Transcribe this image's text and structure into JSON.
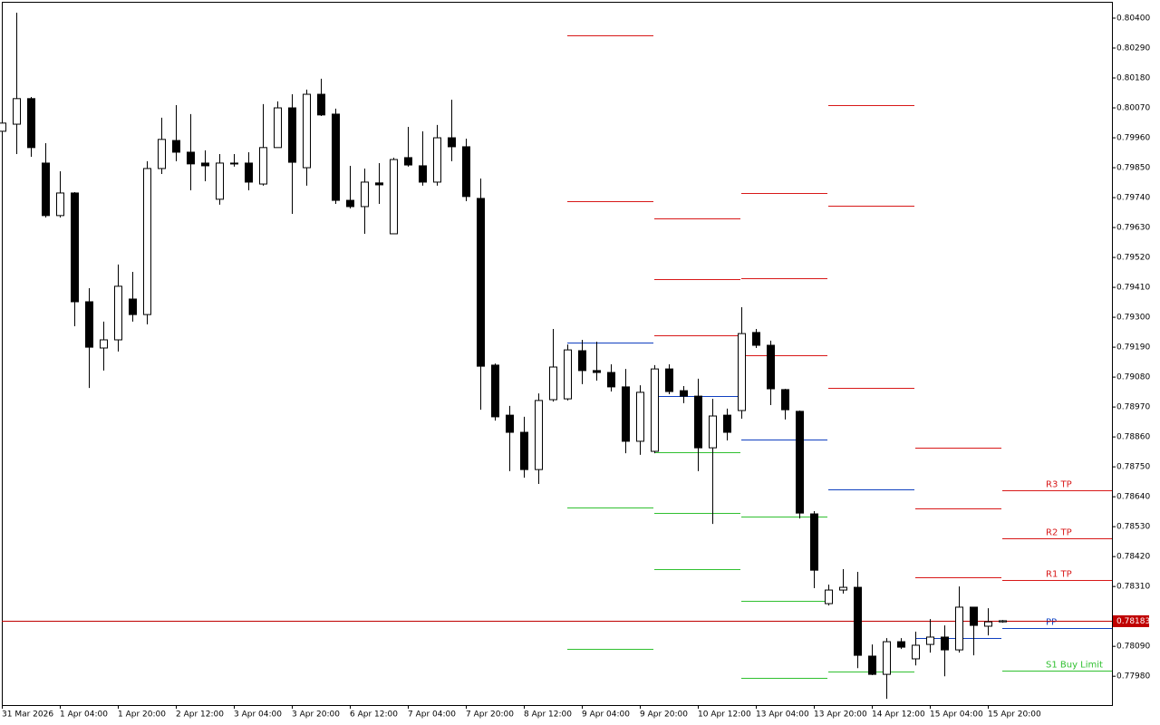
{
  "chart_data": {
    "type": "candlestick",
    "categories": [
      "31 Mar 2026",
      null,
      null,
      null,
      "1 Apr 04:00",
      null,
      null,
      null,
      "1 Apr 20:00",
      null,
      null,
      null,
      "2 Apr 12:00",
      null,
      null,
      null,
      "3 Apr 04:00",
      null,
      null,
      null,
      "3 Apr 20:00",
      null,
      null,
      null,
      "6 Apr 12:00",
      null,
      null,
      null,
      "7 Apr 04:00",
      null,
      null,
      null,
      "7 Apr 20:00",
      null,
      null,
      null,
      "8 Apr 12:00",
      null,
      null,
      null,
      "9 Apr 04:00",
      null,
      null,
      null,
      "9 Apr 20:00",
      null,
      null,
      null,
      "10 Apr 12:00",
      null,
      null,
      null,
      "13 Apr 04:00",
      null,
      null,
      null,
      "13 Apr 20:00",
      null,
      null,
      null,
      "14 Apr 12:00",
      null,
      null,
      null,
      "15 Apr 04:00",
      null,
      null,
      null,
      "15 Apr 20:00",
      null
    ],
    "open": [
      0.79984,
      0.8001,
      0.80104,
      0.79867,
      0.79674,
      0.79757,
      0.79357,
      0.79187,
      0.79217,
      0.79367,
      0.7931,
      0.79847,
      0.7995,
      0.79907,
      0.79867,
      0.79734,
      0.79867,
      0.79867,
      0.7979,
      0.79924,
      0.8007,
      0.7985,
      0.8012,
      0.80047,
      0.7973,
      0.79707,
      0.79794,
      0.79607,
      0.79887,
      0.79857,
      0.79797,
      0.7996,
      0.79927,
      0.79737,
      0.79124,
      0.7894,
      0.78877,
      0.7874,
      0.78997,
      0.79,
      0.79177,
      0.79104,
      0.79097,
      0.79044,
      0.78844,
      0.78807,
      0.7911,
      0.7903,
      0.7901,
      0.7882,
      0.7894,
      0.78957,
      0.79244,
      0.79197,
      0.79034,
      0.78954,
      0.78577,
      0.78247,
      0.78297,
      0.78307,
      0.78054,
      0.77987,
      0.78107,
      0.78044,
      0.78097,
      0.78124,
      0.78077,
      0.78234,
      0.78164,
      0.7818
    ],
    "high": [
      0.80014,
      0.8042,
      0.8011,
      0.7994,
      0.79837,
      0.7976,
      0.79407,
      0.79284,
      0.79494,
      0.79467,
      0.79874,
      0.80034,
      0.8008,
      0.80047,
      0.79914,
      0.799,
      0.799,
      0.79907,
      0.80084,
      0.80094,
      0.8012,
      0.80137,
      0.80177,
      0.80067,
      0.79857,
      0.79847,
      0.79867,
      0.79887,
      0.8,
      0.79984,
      0.80007,
      0.801,
      0.79957,
      0.7981,
      0.7913,
      0.78974,
      0.78934,
      0.7902,
      0.79257,
      0.792,
      0.79217,
      0.7921,
      0.79127,
      0.7911,
      0.7905,
      0.79124,
      0.79127,
      0.79047,
      0.79074,
      0.79,
      0.78964,
      0.79337,
      0.79257,
      0.79214,
      0.79037,
      0.78957,
      0.78587,
      0.78317,
      0.78374,
      0.78364,
      0.78097,
      0.7812,
      0.7812,
      0.78144,
      0.7819,
      0.78167,
      0.7831,
      0.78234,
      0.7823,
      0.78187
    ],
    "low": [
      0.79984,
      0.799,
      0.7989,
      0.79667,
      0.79667,
      0.79267,
      0.7904,
      0.79104,
      0.79174,
      0.79284,
      0.79274,
      0.79827,
      0.79874,
      0.79767,
      0.798,
      0.79714,
      0.79854,
      0.79767,
      0.79784,
      0.79924,
      0.7968,
      0.79784,
      0.8004,
      0.79717,
      0.797,
      0.79607,
      0.79717,
      0.79607,
      0.79854,
      0.79784,
      0.79784,
      0.79874,
      0.79727,
      0.7896,
      0.7892,
      0.78734,
      0.7871,
      0.78687,
      0.7899,
      0.78994,
      0.79054,
      0.79067,
      0.79027,
      0.788,
      0.78794,
      0.788,
      0.79017,
      0.78984,
      0.78734,
      0.7854,
      0.78847,
      0.78927,
      0.79187,
      0.78977,
      0.78924,
      0.7856,
      0.78304,
      0.7824,
      0.78284,
      0.7801,
      0.77984,
      0.77897,
      0.7808,
      0.7802,
      0.78067,
      0.7798,
      0.78067,
      0.78057,
      0.7813,
      0.78177
    ],
    "close": [
      0.80014,
      0.80104,
      0.79924,
      0.79674,
      0.79757,
      0.79357,
      0.7919,
      0.79217,
      0.79414,
      0.7931,
      0.79847,
      0.79954,
      0.79907,
      0.79864,
      0.79857,
      0.79867,
      0.79867,
      0.79797,
      0.79924,
      0.8007,
      0.7987,
      0.8012,
      0.80044,
      0.7973,
      0.79707,
      0.79797,
      0.79787,
      0.7988,
      0.7986,
      0.79797,
      0.7996,
      0.79927,
      0.79744,
      0.7912,
      0.78934,
      0.78877,
      0.7874,
      0.78994,
      0.79117,
      0.7918,
      0.79104,
      0.79097,
      0.79044,
      0.78844,
      0.79024,
      0.7911,
      0.79027,
      0.7901,
      0.7882,
      0.78937,
      0.78877,
      0.7924,
      0.79197,
      0.79037,
      0.7896,
      0.7858,
      0.7837,
      0.78297,
      0.78307,
      0.78057,
      0.77987,
      0.78107,
      0.78087,
      0.78094,
      0.78124,
      0.78077,
      0.78234,
      0.78167,
      0.7818,
      0.78184
    ],
    "ylim": [
      0.77874,
      0.8046
    ],
    "yticks": [
      {
        "value": 0.804,
        "label": "0.80400"
      },
      {
        "value": 0.8029,
        "label": "0.80290"
      },
      {
        "value": 0.8018,
        "label": "0.80180"
      },
      {
        "value": 0.8007,
        "label": "0.80070"
      },
      {
        "value": 0.7996,
        "label": "0.79960"
      },
      {
        "value": 0.7985,
        "label": "0.79850"
      },
      {
        "value": 0.7974,
        "label": "0.79740"
      },
      {
        "value": 0.7963,
        "label": "0.79630"
      },
      {
        "value": 0.7952,
        "label": "0.79520"
      },
      {
        "value": 0.7941,
        "label": "0.79410"
      },
      {
        "value": 0.793,
        "label": "0.79300"
      },
      {
        "value": 0.7919,
        "label": "0.79190"
      },
      {
        "value": 0.7908,
        "label": "0.79080"
      },
      {
        "value": 0.7897,
        "label": "0.78970"
      },
      {
        "value": 0.7886,
        "label": "0.78860"
      },
      {
        "value": 0.7875,
        "label": "0.78750"
      },
      {
        "value": 0.7864,
        "label": "0.78640"
      },
      {
        "value": 0.7853,
        "label": "0.78530"
      },
      {
        "value": 0.7842,
        "label": "0.78420"
      },
      {
        "value": 0.7831,
        "label": "0.78310"
      },
      {
        "value": 0.7809,
        "label": "0.78090"
      },
      {
        "value": 0.7798,
        "label": "0.77980"
      }
    ],
    "current_price": 0.78183,
    "current_color": "#c00000",
    "pivot_days": [
      {
        "levels": [
          {
            "value": 0.80337,
            "color": "#d81818"
          },
          {
            "value": 0.79727,
            "color": "#d81818"
          },
          {
            "value": 0.79207,
            "color": "#1040c0"
          },
          {
            "value": 0.786,
            "color": "#30c030"
          },
          {
            "value": 0.7808,
            "color": "#30c030"
          }
        ]
      },
      {
        "levels": [
          {
            "value": 0.79664,
            "color": "#d81818"
          },
          {
            "value": 0.7944,
            "color": "#d81818"
          },
          {
            "value": 0.79234,
            "color": "#d81818"
          },
          {
            "value": 0.7901,
            "color": "#1040c0"
          },
          {
            "value": 0.78804,
            "color": "#30c030"
          },
          {
            "value": 0.7858,
            "color": "#30c030"
          },
          {
            "value": 0.78374,
            "color": "#30c030"
          }
        ]
      },
      {
        "levels": [
          {
            "value": 0.79757,
            "color": "#d81818"
          },
          {
            "value": 0.79444,
            "color": "#d81818"
          },
          {
            "value": 0.7916,
            "color": "#d81818"
          },
          {
            "value": 0.7885,
            "color": "#1040c0"
          },
          {
            "value": 0.78567,
            "color": "#30c030"
          },
          {
            "value": 0.78257,
            "color": "#30c030"
          },
          {
            "value": 0.77974,
            "color": "#30c030"
          }
        ]
      },
      {
        "levels": [
          {
            "value": 0.8008,
            "color": "#d81818"
          },
          {
            "value": 0.7971,
            "color": "#d81818"
          },
          {
            "value": 0.7904,
            "color": "#d81818"
          },
          {
            "value": 0.78667,
            "color": "#1040c0"
          },
          {
            "value": 0.77997,
            "color": "#30c030"
          }
        ]
      },
      {
        "levels": [
          {
            "value": 0.7882,
            "color": "#d81818"
          },
          {
            "value": 0.78597,
            "color": "#d81818"
          },
          {
            "value": 0.78344,
            "color": "#d81818"
          },
          {
            "value": 0.7812,
            "color": "#1040c0"
          }
        ]
      },
      {
        "levels": [
          {
            "value": 0.78664,
            "color": "#d81818",
            "label": "R3 TP"
          },
          {
            "value": 0.78487,
            "color": "#d81818",
            "label": "R2 TP"
          },
          {
            "value": 0.78334,
            "color": "#d81818",
            "label": "R1 TP"
          },
          {
            "value": 0.78157,
            "color": "#1040c0",
            "label": "PP"
          },
          {
            "value": 0.78,
            "color": "#30c030",
            "label": "S1 Buy Limit"
          }
        ]
      }
    ]
  }
}
